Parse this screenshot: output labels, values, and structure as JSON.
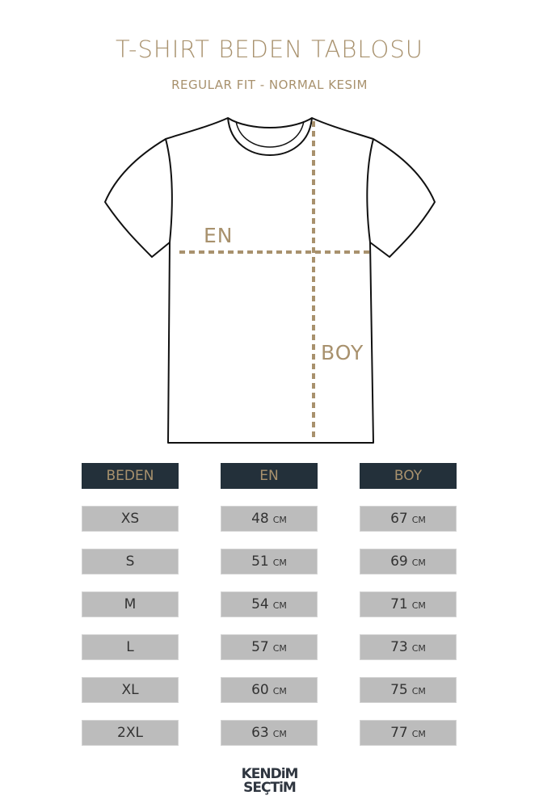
{
  "title": "T-SHIRT BEDEN TABLOSU",
  "subtitle": "REGULAR FIT - NORMAL KESIM",
  "diagram": {
    "width_label": "EN",
    "length_label": "BOY",
    "accent_color": "#a8916d"
  },
  "table": {
    "headers": [
      "BEDEN",
      "EN",
      "BOY"
    ],
    "unit": "CM",
    "rows": [
      {
        "size": "XS",
        "en": "48",
        "boy": "67"
      },
      {
        "size": "S",
        "en": "51",
        "boy": "69"
      },
      {
        "size": "M",
        "en": "54",
        "boy": "71"
      },
      {
        "size": "L",
        "en": "57",
        "boy": "73"
      },
      {
        "size": "XL",
        "en": "60",
        "boy": "75"
      },
      {
        "size": "2XL",
        "en": "63",
        "boy": "77"
      }
    ],
    "header_color": "#23303a",
    "cell_color": "#bcbcbc"
  },
  "logo": {
    "line1": "KENDiM",
    "line2": "SEÇTiM"
  }
}
